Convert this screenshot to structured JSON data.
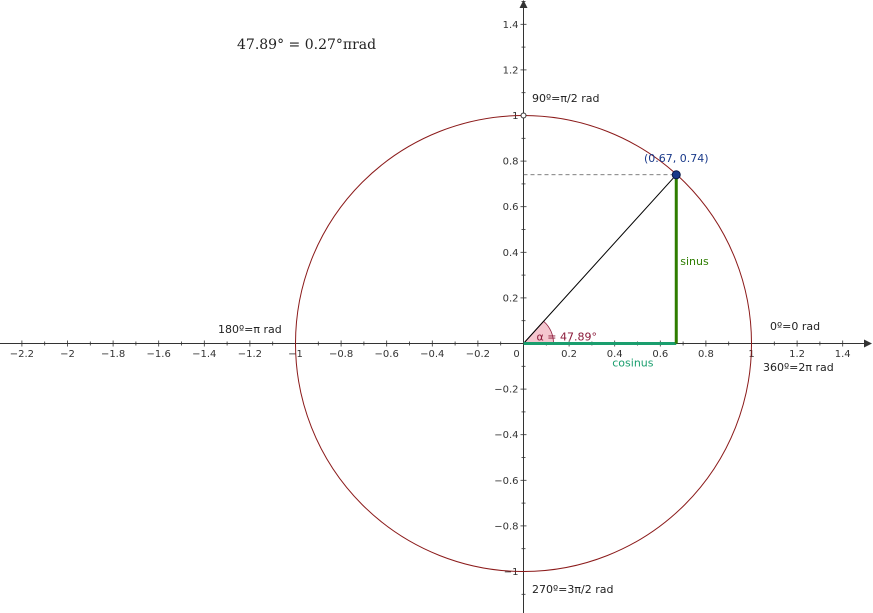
{
  "heading": "47.89° = 0.27°πrad",
  "axes": {
    "x_ticks": [
      "−2.2",
      "−2",
      "−1.8",
      "−1.6",
      "−1.4",
      "−1.2",
      "−1",
      "−0.8",
      "−0.6",
      "−0.4",
      "−0.2",
      "0",
      "0.2",
      "0.4",
      "0.6",
      "0.8",
      "1",
      "1.2",
      "1.4"
    ],
    "y_ticks": [
      "−1",
      "−0.8",
      "−0.6",
      "−0.4",
      "−0.2",
      "0.2",
      "0.4",
      "0.6",
      "0.8",
      "1",
      "1.2",
      "1.4"
    ]
  },
  "annotations": {
    "angle_90": "90º=π/2 rad",
    "angle_180": "180º=π rad",
    "angle_0": "0º=0 rad",
    "angle_360": "360º=2π rad",
    "angle_270": "270º=3π/2 rad"
  },
  "point": {
    "x": 0.67,
    "y": 0.74,
    "label": "(0.67, 0.74)"
  },
  "angle": {
    "degrees": 47.89,
    "label": "α = 47.89°"
  },
  "segments": {
    "sin_label": "sinus",
    "cos_label": "cosinus"
  },
  "colors": {
    "circle": "#8b1a1a",
    "sinus": "#2e7d00",
    "cosinus": "#1a9e6e",
    "point": "#1a3a8a",
    "angle_fill": "#f4c6cf",
    "angle_text": "#8b1a3a",
    "axis": "#333333"
  }
}
